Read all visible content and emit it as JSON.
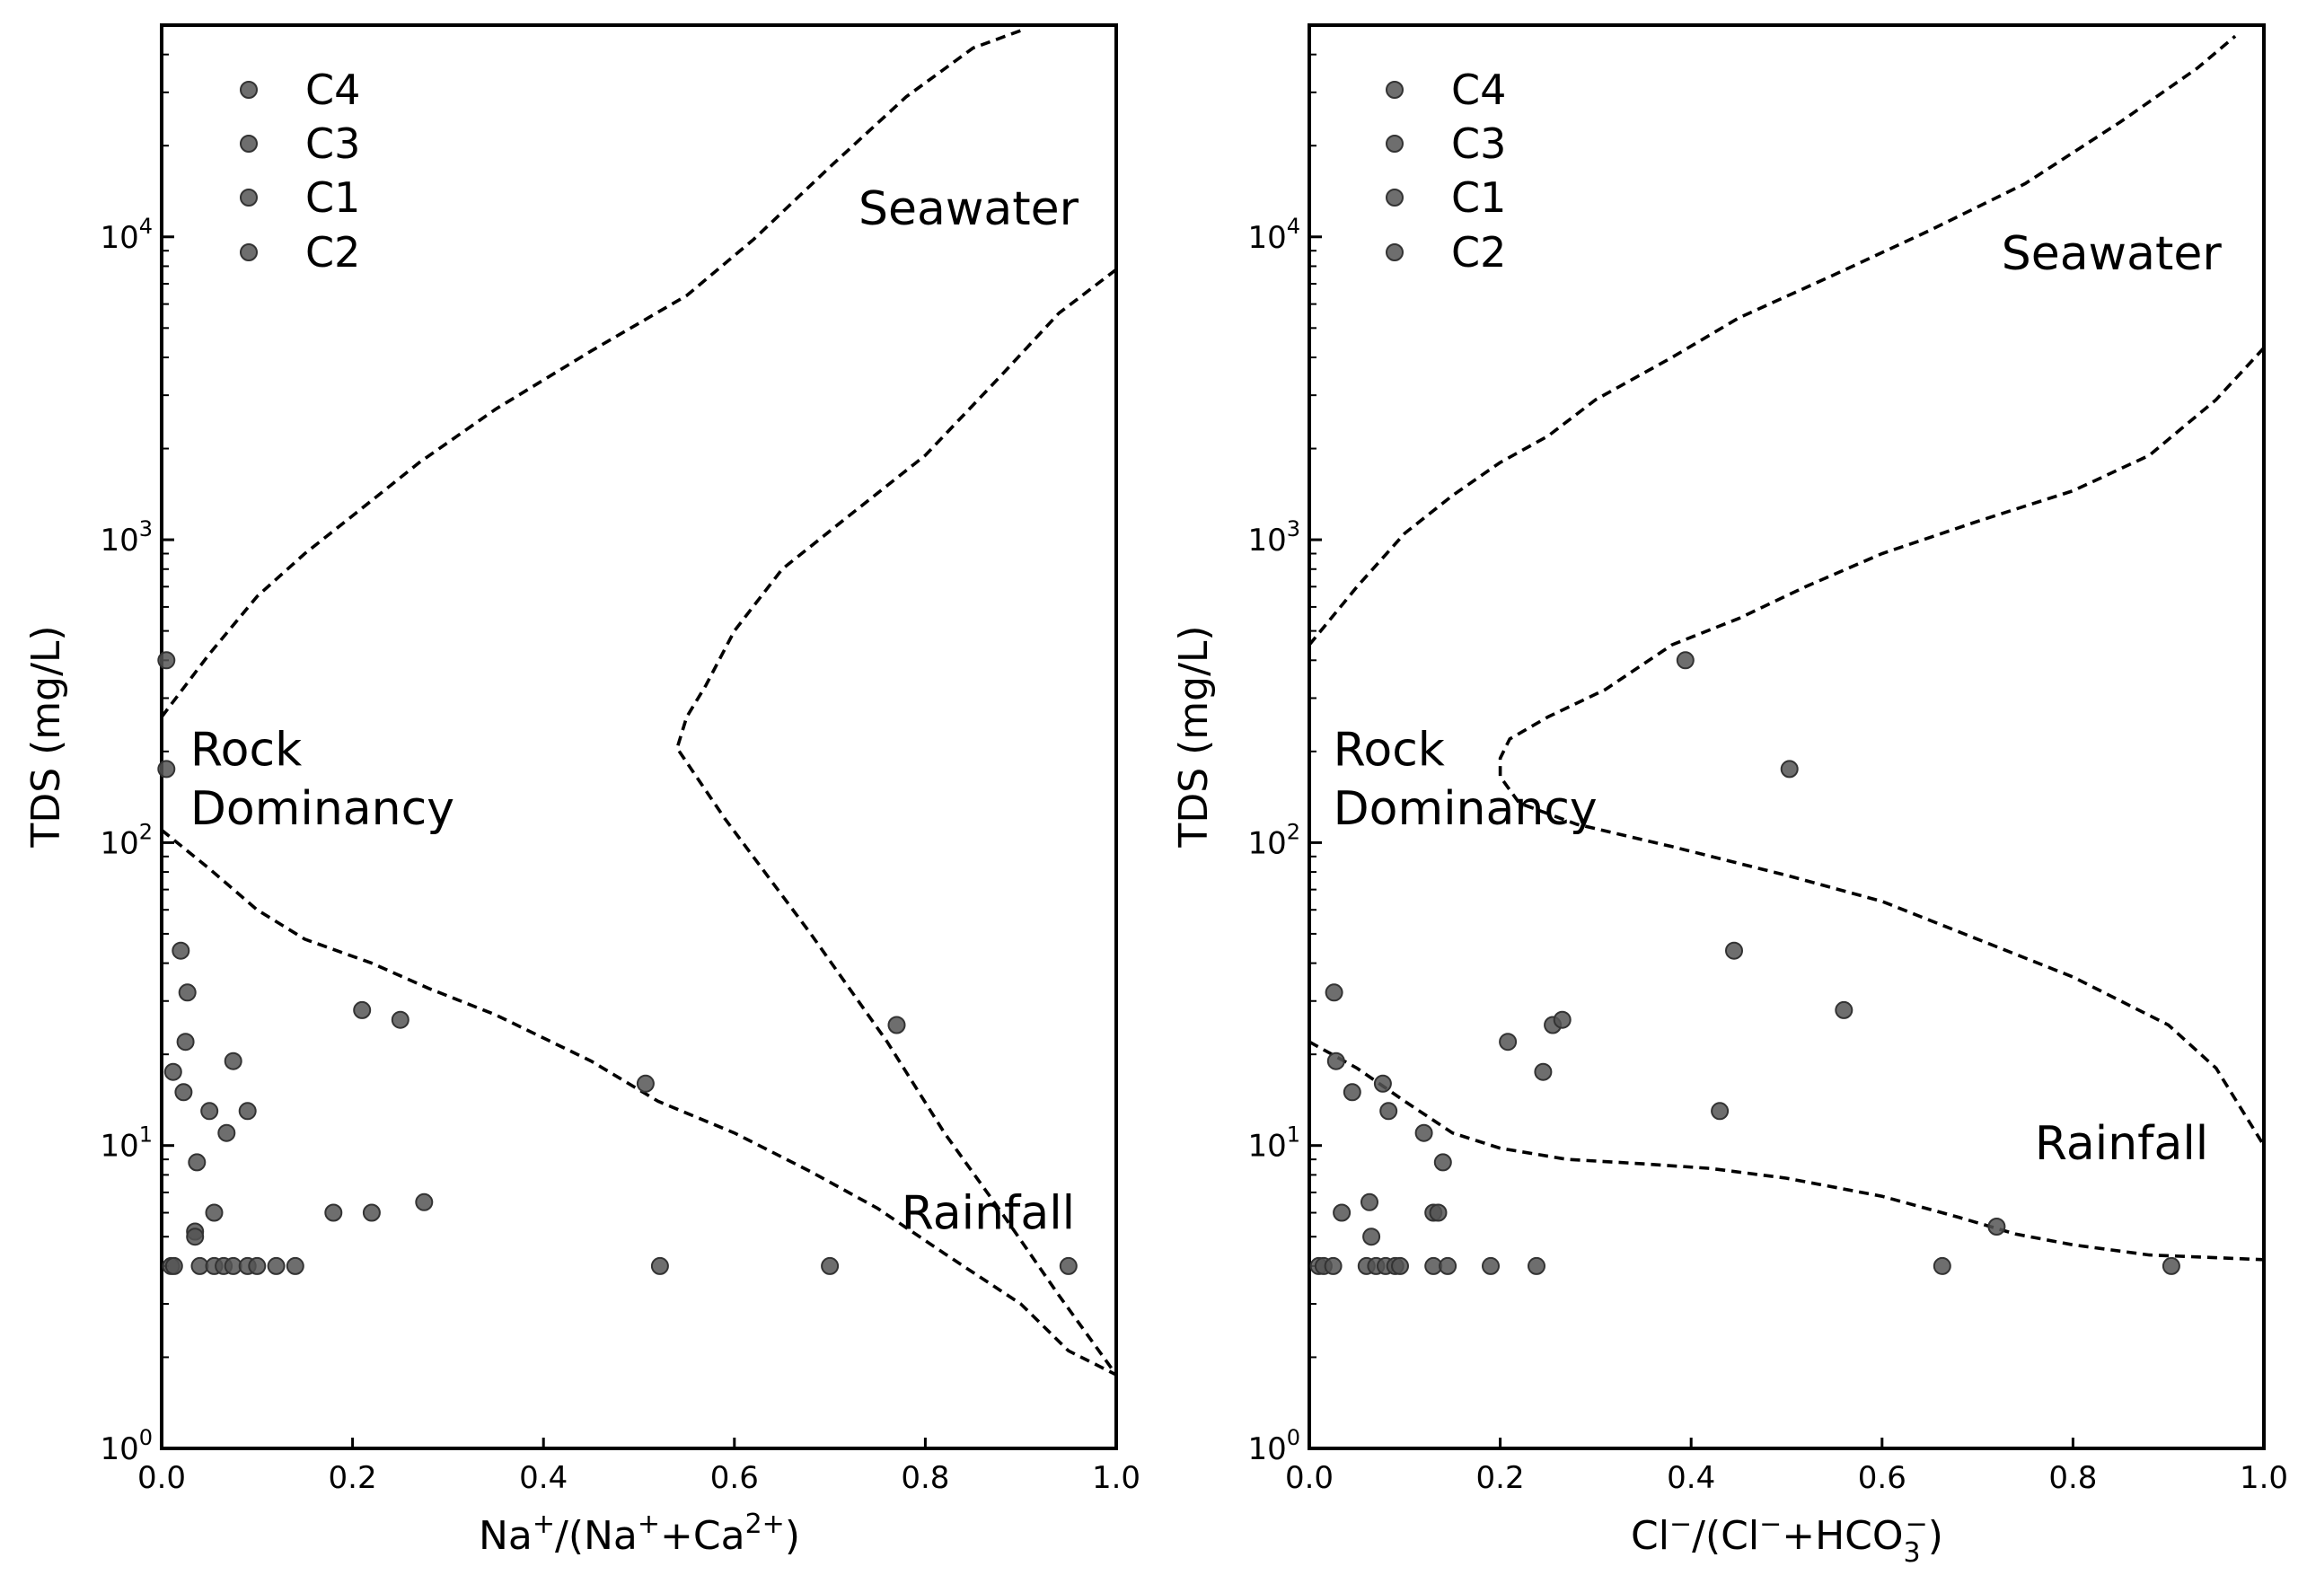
{
  "figure_colors": {
    "point": "#555555",
    "point_edge": "#333333",
    "line": "#000000"
  },
  "chart_data": [
    {
      "type": "scatter",
      "title": "",
      "xlabel": {
        "base": "Na",
        "sup1": "+",
        "mid": "/(Na",
        "sup2": "+",
        "mid2": "+Ca",
        "sup3": "2+",
        "end": ")"
      },
      "ylabel": "TDS (mg/L)",
      "xlim": [
        0,
        1
      ],
      "ylim": [
        1,
        50000
      ],
      "yscale": "log",
      "grid": false,
      "legend_placement": "top-left",
      "x_ticks": [
        "0.0",
        "0.2",
        "0.4",
        "0.6",
        "0.8",
        "1.0"
      ],
      "y_ticks": [
        {
          "base": "10",
          "exp": "0"
        },
        {
          "base": "10",
          "exp": "1"
        },
        {
          "base": "10",
          "exp": "2"
        },
        {
          "base": "10",
          "exp": "3"
        },
        {
          "base": "10",
          "exp": "4"
        }
      ],
      "legend": [
        "C4",
        "C3",
        "C1",
        "C2"
      ],
      "annotations": [
        {
          "text": "Seawater",
          "x": 0.73,
          "y": 11000
        },
        {
          "text": "Rock",
          "x": 0.03,
          "y": 180
        },
        {
          "text": "Dominancy",
          "x": 0.03,
          "y": 115
        },
        {
          "text": "Rainfall",
          "x": 0.775,
          "y": 5.3
        }
      ],
      "boundaries": [
        {
          "name": "upper",
          "points": [
            [
              0.0,
              260
            ],
            [
              0.05,
              420
            ],
            [
              0.1,
              650
            ],
            [
              0.15,
              900
            ],
            [
              0.2,
              1200
            ],
            [
              0.27,
              1800
            ],
            [
              0.35,
              2700
            ],
            [
              0.45,
              4200
            ],
            [
              0.55,
              6400
            ],
            [
              0.62,
              9800
            ],
            [
              0.7,
              17000
            ],
            [
              0.78,
              29000
            ],
            [
              0.85,
              42000
            ],
            [
              0.9,
              48000
            ]
          ]
        },
        {
          "name": "outer",
          "points": [
            [
              1.0,
              7800
            ],
            [
              0.94,
              5600
            ],
            [
              0.88,
              3500
            ],
            [
              0.8,
              1900
            ],
            [
              0.72,
              1200
            ],
            [
              0.65,
              800
            ],
            [
              0.6,
              500
            ],
            [
              0.57,
              330
            ],
            [
              0.55,
              260
            ],
            [
              0.54,
              205
            ],
            [
              0.59,
              120
            ],
            [
              0.68,
              50
            ],
            [
              0.76,
              22
            ],
            [
              0.82,
              11
            ],
            [
              0.88,
              6
            ],
            [
              0.94,
              3.2
            ],
            [
              1.0,
              1.75
            ]
          ]
        },
        {
          "name": "lower",
          "points": [
            [
              0.0,
              110
            ],
            [
              0.05,
              82
            ],
            [
              0.1,
              60
            ],
            [
              0.15,
              48
            ],
            [
              0.22,
              40
            ],
            [
              0.28,
              33
            ],
            [
              0.35,
              27
            ],
            [
              0.45,
              19
            ],
            [
              0.52,
              14
            ],
            [
              0.6,
              11
            ],
            [
              0.68,
              8.2
            ],
            [
              0.75,
              6.2
            ],
            [
              0.82,
              4.4
            ],
            [
              0.9,
              3
            ],
            [
              0.95,
              2.1
            ],
            [
              1.0,
              1.75
            ]
          ]
        }
      ],
      "series": [
        {
          "points": [
            [
              0.005,
              400
            ],
            [
              0.005,
              175
            ],
            [
              0.02,
              44
            ],
            [
              0.027,
              32
            ],
            [
              0.025,
              22
            ],
            [
              0.012,
              17.5
            ],
            [
              0.023,
              15
            ],
            [
              0.075,
              19
            ],
            [
              0.05,
              13
            ],
            [
              0.09,
              13
            ],
            [
              0.068,
              11
            ],
            [
              0.037,
              8.8
            ],
            [
              0.055,
              6
            ],
            [
              0.035,
              5.2
            ],
            [
              0.035,
              5
            ],
            [
              0.01,
              4
            ],
            [
              0.013,
              4
            ],
            [
              0.04,
              4
            ],
            [
              0.055,
              4
            ],
            [
              0.065,
              4
            ],
            [
              0.075,
              4
            ],
            [
              0.09,
              4
            ],
            [
              0.1,
              4
            ],
            [
              0.12,
              4
            ],
            [
              0.14,
              4
            ],
            [
              0.21,
              28
            ],
            [
              0.25,
              26
            ],
            [
              0.507,
              16
            ],
            [
              0.77,
              25
            ],
            [
              0.18,
              6
            ],
            [
              0.22,
              6
            ],
            [
              0.275,
              6.5
            ],
            [
              0.522,
              4
            ],
            [
              0.7,
              4
            ],
            [
              0.95,
              4
            ]
          ]
        }
      ]
    },
    {
      "type": "scatter",
      "title": "",
      "xlabel": {
        "base": "Cl",
        "sup1": "−",
        "mid": "/(Cl",
        "sup2": "−",
        "mid2": "+HCO",
        "sub3": "3",
        "sup3": "−",
        "end": ")"
      },
      "ylabel": "TDS (mg/L)",
      "xlim": [
        0,
        1
      ],
      "ylim": [
        1,
        50000
      ],
      "yscale": "log",
      "grid": false,
      "legend_placement": "top-left",
      "x_ticks": [
        "0.0",
        "0.2",
        "0.4",
        "0.6",
        "0.8",
        "1.0"
      ],
      "y_ticks": [
        {
          "base": "10",
          "exp": "0"
        },
        {
          "base": "10",
          "exp": "1"
        },
        {
          "base": "10",
          "exp": "2"
        },
        {
          "base": "10",
          "exp": "3"
        },
        {
          "base": "10",
          "exp": "4"
        }
      ],
      "legend": [
        "C4",
        "C3",
        "C1",
        "C2"
      ],
      "annotations": [
        {
          "text": "Seawater",
          "x": 0.725,
          "y": 7800
        },
        {
          "text": "Rock",
          "x": 0.025,
          "y": 180
        },
        {
          "text": "Dominancy",
          "x": 0.025,
          "y": 115
        },
        {
          "text": "Rainfall",
          "x": 0.76,
          "y": 9
        }
      ],
      "boundaries": [
        {
          "name": "upper",
          "points": [
            [
              0.0,
              450
            ],
            [
              0.05,
              700
            ],
            [
              0.1,
              1050
            ],
            [
              0.15,
              1400
            ],
            [
              0.2,
              1800
            ],
            [
              0.25,
              2200
            ],
            [
              0.3,
              2900
            ],
            [
              0.38,
              4000
            ],
            [
              0.45,
              5400
            ],
            [
              0.55,
              7500
            ],
            [
              0.65,
              10500
            ],
            [
              0.75,
              15000
            ],
            [
              0.85,
              24000
            ],
            [
              0.93,
              36000
            ],
            [
              0.97,
              46000
            ]
          ]
        },
        {
          "name": "outer",
          "points": [
            [
              1.0,
              4300
            ],
            [
              0.95,
              2900
            ],
            [
              0.88,
              1900
            ],
            [
              0.8,
              1450
            ],
            [
              0.7,
              1150
            ],
            [
              0.6,
              900
            ],
            [
              0.52,
              700
            ],
            [
              0.45,
              550
            ],
            [
              0.38,
              450
            ],
            [
              0.31,
              320
            ],
            [
              0.25,
              260
            ],
            [
              0.21,
              220
            ],
            [
              0.2,
              190
            ],
            [
              0.2,
              165
            ],
            [
              0.22,
              135
            ],
            [
              0.28,
              115
            ],
            [
              0.38,
              97
            ],
            [
              0.5,
              78
            ],
            [
              0.6,
              64
            ],
            [
              0.7,
              48
            ],
            [
              0.8,
              36
            ],
            [
              0.9,
              25
            ],
            [
              0.95,
              18
            ],
            [
              1.0,
              10
            ]
          ]
        },
        {
          "name": "lower",
          "points": [
            [
              0.0,
              22
            ],
            [
              0.05,
              18
            ],
            [
              0.1,
              14
            ],
            [
              0.15,
              11
            ],
            [
              0.2,
              9.8
            ],
            [
              0.27,
              9
            ],
            [
              0.35,
              8.7
            ],
            [
              0.42,
              8.4
            ],
            [
              0.5,
              7.8
            ],
            [
              0.6,
              6.8
            ],
            [
              0.68,
              5.8
            ],
            [
              0.74,
              5.1
            ],
            [
              0.8,
              4.7
            ],
            [
              0.88,
              4.35
            ],
            [
              1.0,
              4.2
            ]
          ]
        }
      ],
      "series": [
        {
          "points": [
            [
              0.394,
              400
            ],
            [
              0.503,
              175
            ],
            [
              0.445,
              44
            ],
            [
              0.026,
              32
            ],
            [
              0.208,
              22
            ],
            [
              0.255,
              25
            ],
            [
              0.265,
              26
            ],
            [
              0.245,
              17.5
            ],
            [
              0.56,
              28
            ],
            [
              0.028,
              19
            ],
            [
              0.045,
              15
            ],
            [
              0.077,
              16
            ],
            [
              0.083,
              13
            ],
            [
              0.43,
              13
            ],
            [
              0.12,
              11
            ],
            [
              0.14,
              8.8
            ],
            [
              0.063,
              6.5
            ],
            [
              0.034,
              6
            ],
            [
              0.13,
              6
            ],
            [
              0.135,
              6
            ],
            [
              0.065,
              5
            ],
            [
              0.01,
              4
            ],
            [
              0.015,
              4
            ],
            [
              0.025,
              4
            ],
            [
              0.06,
              4
            ],
            [
              0.07,
              4
            ],
            [
              0.08,
              4
            ],
            [
              0.09,
              4
            ],
            [
              0.095,
              4
            ],
            [
              0.13,
              4
            ],
            [
              0.145,
              4
            ],
            [
              0.19,
              4
            ],
            [
              0.238,
              4
            ],
            [
              0.663,
              4
            ],
            [
              0.72,
              5.4
            ],
            [
              0.903,
              4
            ]
          ]
        }
      ]
    }
  ]
}
